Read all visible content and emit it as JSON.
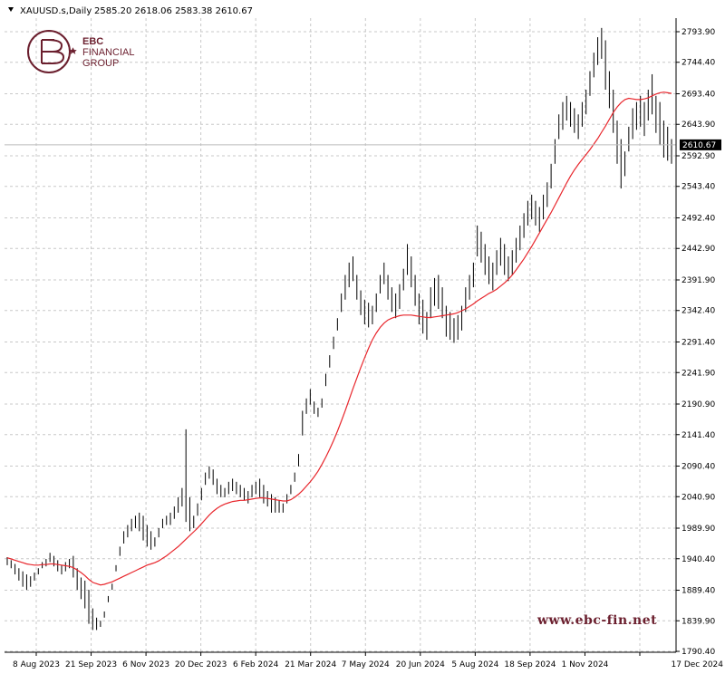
{
  "header": {
    "symbol": "XAUUSD.s,Daily",
    "ohlc": "2585.20 2618.06 2583.38 2610.67"
  },
  "logo": {
    "line1": "EBC",
    "line2": "FINANCIAL",
    "line3": "GROUP",
    "color": "#6b1f2e"
  },
  "watermark": "www.ebc-fin.net",
  "chart_data": {
    "type": "line",
    "price_labels": [
      "2793.90",
      "2744.40",
      "2693.40",
      "2643.90",
      "2592.90",
      "2543.40",
      "2492.40",
      "2442.90",
      "2391.90",
      "2342.40",
      "2291.40",
      "2241.90",
      "2190.90",
      "2141.40",
      "2090.40",
      "2040.90",
      "1989.90",
      "1940.40",
      "1889.40",
      "1839.90",
      "1790.40"
    ],
    "ylim": [
      1790.4,
      2793.9
    ],
    "date_labels": [
      "8 Aug 2023",
      "21 Sep 2023",
      "6 Nov 2023",
      "20 Dec 2023",
      "6 Feb 2024",
      "21 Mar 2024",
      "7 May 2024",
      "20 Jun 2024",
      "5 Aug 2024",
      "18 Sep 2024",
      "1 Nov 2024",
      "17 Dec 2024"
    ],
    "current_price": "2610.67",
    "series": [
      {
        "kind": "high",
        "values": [
          1943,
          1938,
          1932,
          1925,
          1920,
          1915,
          1912,
          1918,
          1925,
          1935,
          1940,
          1950,
          1945,
          1938,
          1930,
          1935,
          1940,
          1945,
          1925,
          1910,
          1905,
          1890,
          1860,
          1845,
          1840,
          1855,
          1880,
          1900,
          1930,
          1960,
          1985,
          1995,
          2005,
          2010,
          2015,
          2010,
          1995,
          1985,
          1975,
          1990,
          2005,
          2010,
          2015,
          2025,
          2040,
          2055,
          2150,
          2040,
          2010,
          2030,
          2055,
          2080,
          2090,
          2085,
          2070,
          2060,
          2055,
          2065,
          2070,
          2065,
          2060,
          2055,
          2050,
          2060,
          2065,
          2070,
          2060,
          2050,
          2045,
          2040,
          2035,
          2030,
          2045,
          2060,
          2080,
          2110,
          2180,
          2200,
          2215,
          2195,
          2185,
          2200,
          2240,
          2270,
          2300,
          2330,
          2370,
          2400,
          2420,
          2430,
          2400,
          2375,
          2360,
          2355,
          2350,
          2370,
          2400,
          2420,
          2400,
          2380,
          2370,
          2385,
          2410,
          2450,
          2430,
          2400,
          2370,
          2360,
          2340,
          2380,
          2395,
          2400,
          2380,
          2350,
          2340,
          2330,
          2335,
          2350,
          2380,
          2400,
          2420,
          2480,
          2470,
          2450,
          2430,
          2420,
          2440,
          2460,
          2450,
          2430,
          2440,
          2460,
          2480,
          2500,
          2520,
          2530,
          2520,
          2510,
          2530,
          2550,
          2580,
          2620,
          2660,
          2680,
          2690,
          2680,
          2670,
          2660,
          2680,
          2700,
          2730,
          2760,
          2785,
          2800,
          2780,
          2730,
          2700,
          2650,
          2620,
          2600,
          2640,
          2670,
          2680,
          2690,
          2680,
          2700,
          2725,
          2690,
          2680,
          2650,
          2640,
          2620
        ]
      },
      {
        "kind": "low",
        "values": [
          1930,
          1925,
          1915,
          1905,
          1895,
          1890,
          1895,
          1905,
          1915,
          1925,
          1928,
          1935,
          1928,
          1920,
          1915,
          1920,
          1925,
          1910,
          1890,
          1875,
          1860,
          1835,
          1825,
          1825,
          1830,
          1845,
          1870,
          1890,
          1920,
          1945,
          1965,
          1975,
          1985,
          1990,
          1985,
          1970,
          1960,
          1955,
          1960,
          1975,
          1990,
          1995,
          1995,
          2005,
          2015,
          2025,
          2000,
          1985,
          1990,
          2010,
          2035,
          2060,
          2070,
          2060,
          2045,
          2040,
          2040,
          2045,
          2050,
          2045,
          2040,
          2035,
          2030,
          2040,
          2045,
          2040,
          2030,
          2025,
          2015,
          2015,
          2015,
          2015,
          2030,
          2045,
          2065,
          2090,
          2140,
          2175,
          2190,
          2175,
          2170,
          2185,
          2220,
          2250,
          2280,
          2310,
          2340,
          2360,
          2380,
          2390,
          2360,
          2335,
          2320,
          2315,
          2320,
          2340,
          2370,
          2385,
          2360,
          2340,
          2330,
          2345,
          2375,
          2400,
          2380,
          2350,
          2320,
          2305,
          2295,
          2330,
          2350,
          2345,
          2330,
          2300,
          2295,
          2290,
          2295,
          2310,
          2340,
          2360,
          2380,
          2430,
          2420,
          2400,
          2385,
          2375,
          2400,
          2415,
          2400,
          2390,
          2400,
          2420,
          2440,
          2460,
          2480,
          2490,
          2480,
          2470,
          2490,
          2510,
          2540,
          2580,
          2620,
          2635,
          2650,
          2640,
          2630,
          2620,
          2640,
          2660,
          2690,
          2720,
          2740,
          2750,
          2700,
          2670,
          2630,
          2580,
          2540,
          2560,
          2600,
          2620,
          2635,
          2640,
          2625,
          2650,
          2660,
          2630,
          2610,
          2590,
          2585,
          2580
        ]
      },
      {
        "kind": "moving_average",
        "name": "",
        "values": [
          1942,
          1940,
          1938,
          1936,
          1934,
          1932,
          1931,
          1930,
          1930,
          1931,
          1931,
          1932,
          1932,
          1931,
          1930,
          1929,
          1928,
          1926,
          1922,
          1918,
          1913,
          1907,
          1902,
          1900,
          1898,
          1899,
          1901,
          1903,
          1906,
          1909,
          1912,
          1915,
          1918,
          1921,
          1924,
          1927,
          1930,
          1932,
          1934,
          1937,
          1941,
          1945,
          1950,
          1955,
          1960,
          1966,
          1972,
          1978,
          1984,
          1990,
          1997,
          2004,
          2011,
          2017,
          2022,
          2026,
          2029,
          2031,
          2033,
          2034,
          2035,
          2035,
          2036,
          2037,
          2038,
          2039,
          2039,
          2038,
          2037,
          2036,
          2035,
          2034,
          2034,
          2036,
          2040,
          2045,
          2051,
          2058,
          2065,
          2073,
          2082,
          2093,
          2105,
          2118,
          2132,
          2147,
          2163,
          2180,
          2198,
          2216,
          2233,
          2250,
          2266,
          2281,
          2295,
          2306,
          2315,
          2322,
          2327,
          2330,
          2332,
          2334,
          2335,
          2335,
          2335,
          2334,
          2333,
          2332,
          2331,
          2331,
          2332,
          2333,
          2334,
          2335,
          2336,
          2337,
          2339,
          2342,
          2345,
          2349,
          2353,
          2358,
          2362,
          2366,
          2370,
          2373,
          2377,
          2382,
          2387,
          2393,
          2400,
          2408,
          2417,
          2426,
          2436,
          2446,
          2457,
          2468,
          2479,
          2490,
          2501,
          2513,
          2525,
          2537,
          2549,
          2560,
          2570,
          2579,
          2587,
          2595,
          2603,
          2612,
          2621,
          2631,
          2641,
          2652,
          2663,
          2672,
          2679,
          2684,
          2686,
          2685,
          2684,
          2684,
          2685,
          2687,
          2690,
          2693,
          2695,
          2696,
          2695,
          2694
        ]
      }
    ]
  }
}
